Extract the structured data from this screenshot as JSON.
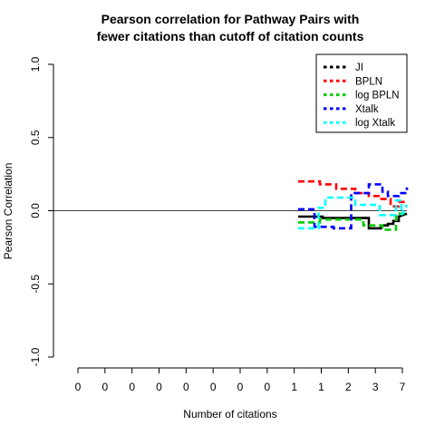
{
  "chart_data": {
    "type": "line",
    "title": [
      "Pearson correlation for Pathway Pairs with",
      "fewer citations than cutoff of citation counts"
    ],
    "xlabel": "Number of citations",
    "ylabel": "Pearson Correlation",
    "ylim": [
      -1.0,
      1.0
    ],
    "yticks": [
      "-1.0",
      "-0.5",
      "0.0",
      "0.5",
      "1.0"
    ],
    "xtick_labels": [
      "0",
      "0",
      "0",
      "0",
      "0",
      "0",
      "0",
      "0",
      "1",
      "1",
      "2",
      "3",
      "7"
    ],
    "xlim": [
      0,
      13
    ],
    "reference_line_y": 0,
    "legend_position": "top-right",
    "series": [
      {
        "name": "JI",
        "color": "#000000",
        "x": [
          9,
          9.9,
          9.9,
          11.6,
          11.6,
          12.05,
          12.05,
          12.3,
          12.3,
          12.5,
          12.5,
          12.7,
          12.7,
          13.0
        ],
        "y": [
          -0.04,
          -0.04,
          -0.05,
          -0.05,
          -0.12,
          -0.12,
          -0.1,
          -0.1,
          -0.09,
          -0.09,
          -0.07,
          -0.07,
          -0.04,
          -0.02
        ]
      },
      {
        "name": "BPLN",
        "color": "#ff0000",
        "x": [
          9,
          9.8,
          9.8,
          10.4,
          10.4,
          11.1,
          11.1,
          11.6,
          11.6,
          12.0,
          12.0,
          12.4,
          12.4,
          12.7,
          12.7,
          13.0
        ],
        "y": [
          0.2,
          0.2,
          0.18,
          0.18,
          0.15,
          0.15,
          0.12,
          0.12,
          0.1,
          0.1,
          0.08,
          0.08,
          0.03,
          0.03,
          0.06,
          0.06
        ]
      },
      {
        "name": "log BPLN",
        "color": "#00cc00",
        "x": [
          9,
          9.8,
          9.8,
          11.4,
          11.4,
          12.1,
          12.1,
          12.6,
          12.6,
          13.0
        ],
        "y": [
          -0.08,
          -0.08,
          -0.06,
          -0.06,
          -0.1,
          -0.1,
          -0.13,
          -0.13,
          -0.02,
          -0.02
        ]
      },
      {
        "name": "Xtalk",
        "color": "#0000ff",
        "x": [
          9,
          9.6,
          9.6,
          10.3,
          10.3,
          10.95,
          10.95,
          11.6,
          11.6,
          12.1,
          12.1,
          12.3,
          12.3,
          12.7,
          12.7,
          13.0,
          13.0
        ],
        "y": [
          0.01,
          0.01,
          -0.11,
          -0.11,
          -0.12,
          -0.12,
          0.12,
          0.12,
          0.18,
          0.18,
          0.13,
          0.13,
          0.1,
          0.1,
          0.12,
          0.12,
          0.16
        ]
      },
      {
        "name": "log Xtalk",
        "color": "#00ffff",
        "x": [
          9,
          9.75,
          9.75,
          10.0,
          10.0,
          11.1,
          11.1,
          12.0,
          12.0,
          12.6,
          12.6,
          12.8,
          12.8,
          13.0
        ],
        "y": [
          -0.12,
          -0.12,
          0.02,
          0.02,
          0.09,
          0.09,
          0.04,
          0.04,
          -0.03,
          -0.03,
          0.07,
          0.07,
          -0.03,
          0.04
        ]
      }
    ]
  }
}
